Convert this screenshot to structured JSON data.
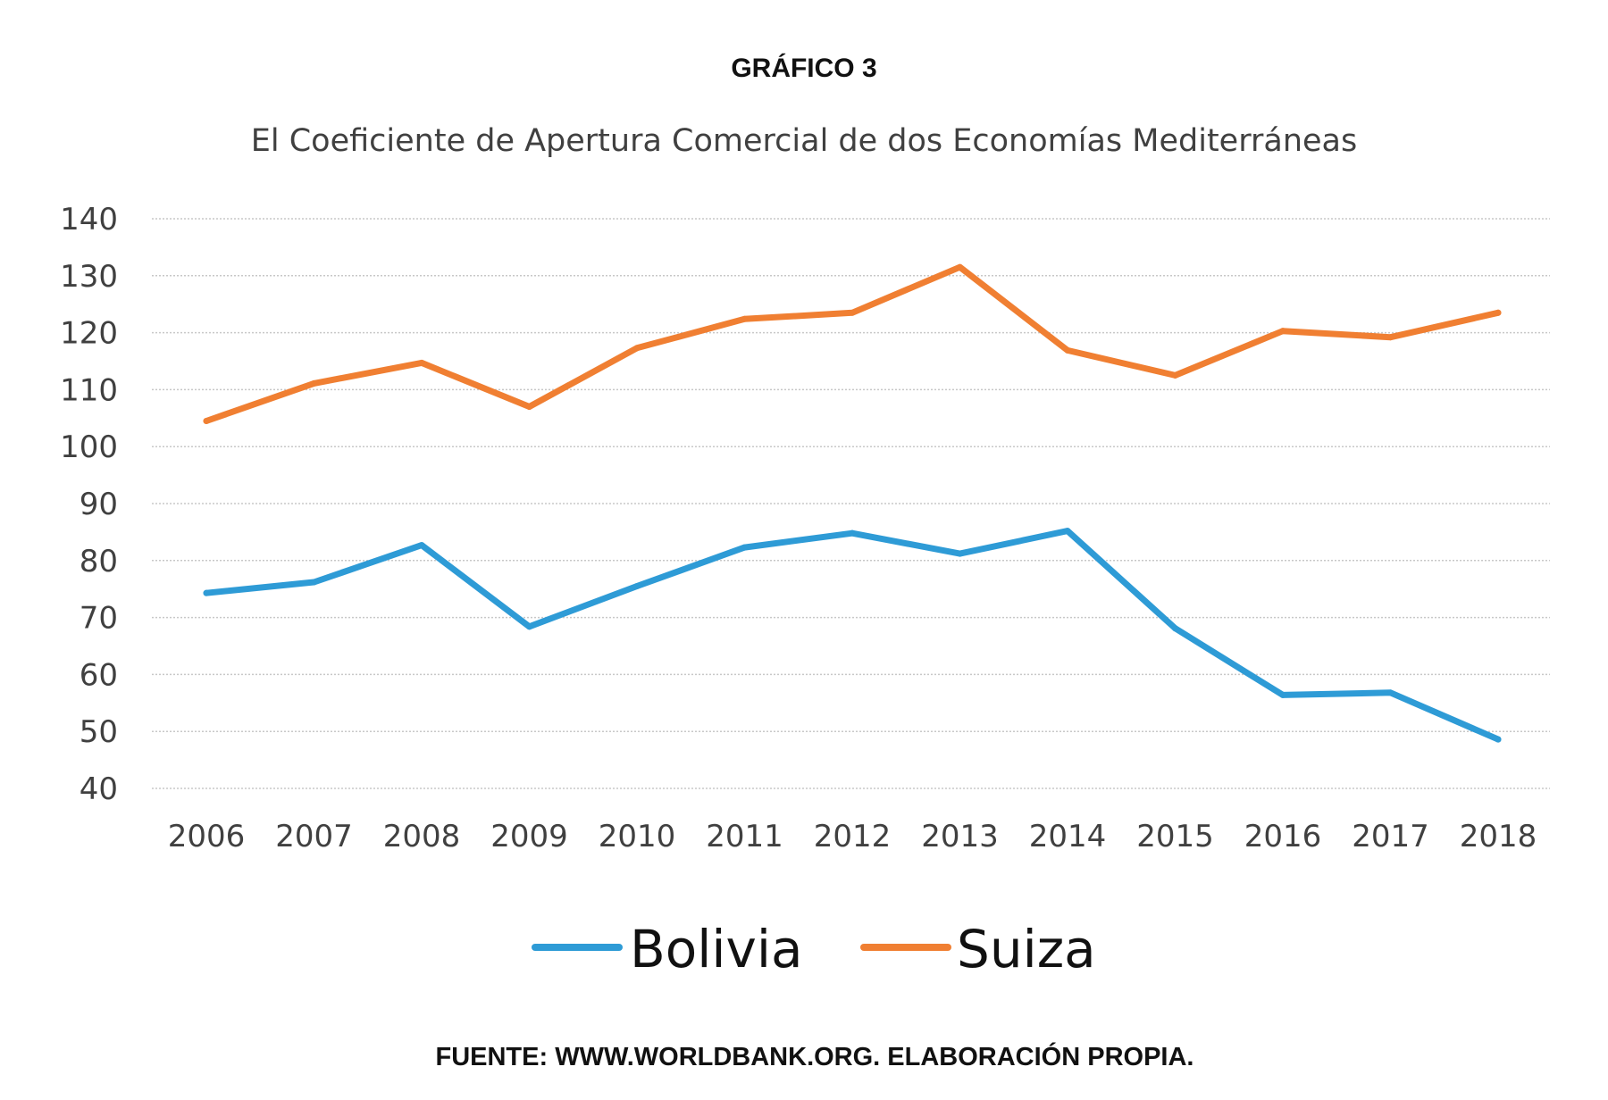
{
  "figure": {
    "label": "GRÁFICO 3",
    "source": "FUENTE: WWW.WORLDBANK.ORG. ELABORACIÓN PROPIA."
  },
  "chart_data": {
    "type": "line",
    "title": "El Coeficiente de Apertura Comercial de dos Economías Mediterráneas",
    "xlabel": "",
    "ylabel": "",
    "x": [
      "2006",
      "2007",
      "2008",
      "2009",
      "2010",
      "2011",
      "2012",
      "2013",
      "2014",
      "2015",
      "2016",
      "2017",
      "2018"
    ],
    "y_ticks": [
      40,
      50,
      60,
      70,
      80,
      90,
      100,
      110,
      120,
      130,
      140
    ],
    "ylim": [
      40,
      140
    ],
    "grid": true,
    "legend_position": "bottom",
    "series": [
      {
        "name": "Bolivia",
        "color": "#2e9bd6",
        "values": [
          74.3,
          76.2,
          82.7,
          68.4,
          75.5,
          82.3,
          84.8,
          81.2,
          85.2,
          68.1,
          56.4,
          56.8,
          48.6
        ]
      },
      {
        "name": "Suiza",
        "color": "#f07f32",
        "values": [
          104.5,
          111.1,
          114.7,
          107.0,
          117.3,
          122.4,
          123.5,
          131.5,
          116.9,
          112.5,
          120.3,
          119.2,
          123.5
        ]
      }
    ]
  }
}
